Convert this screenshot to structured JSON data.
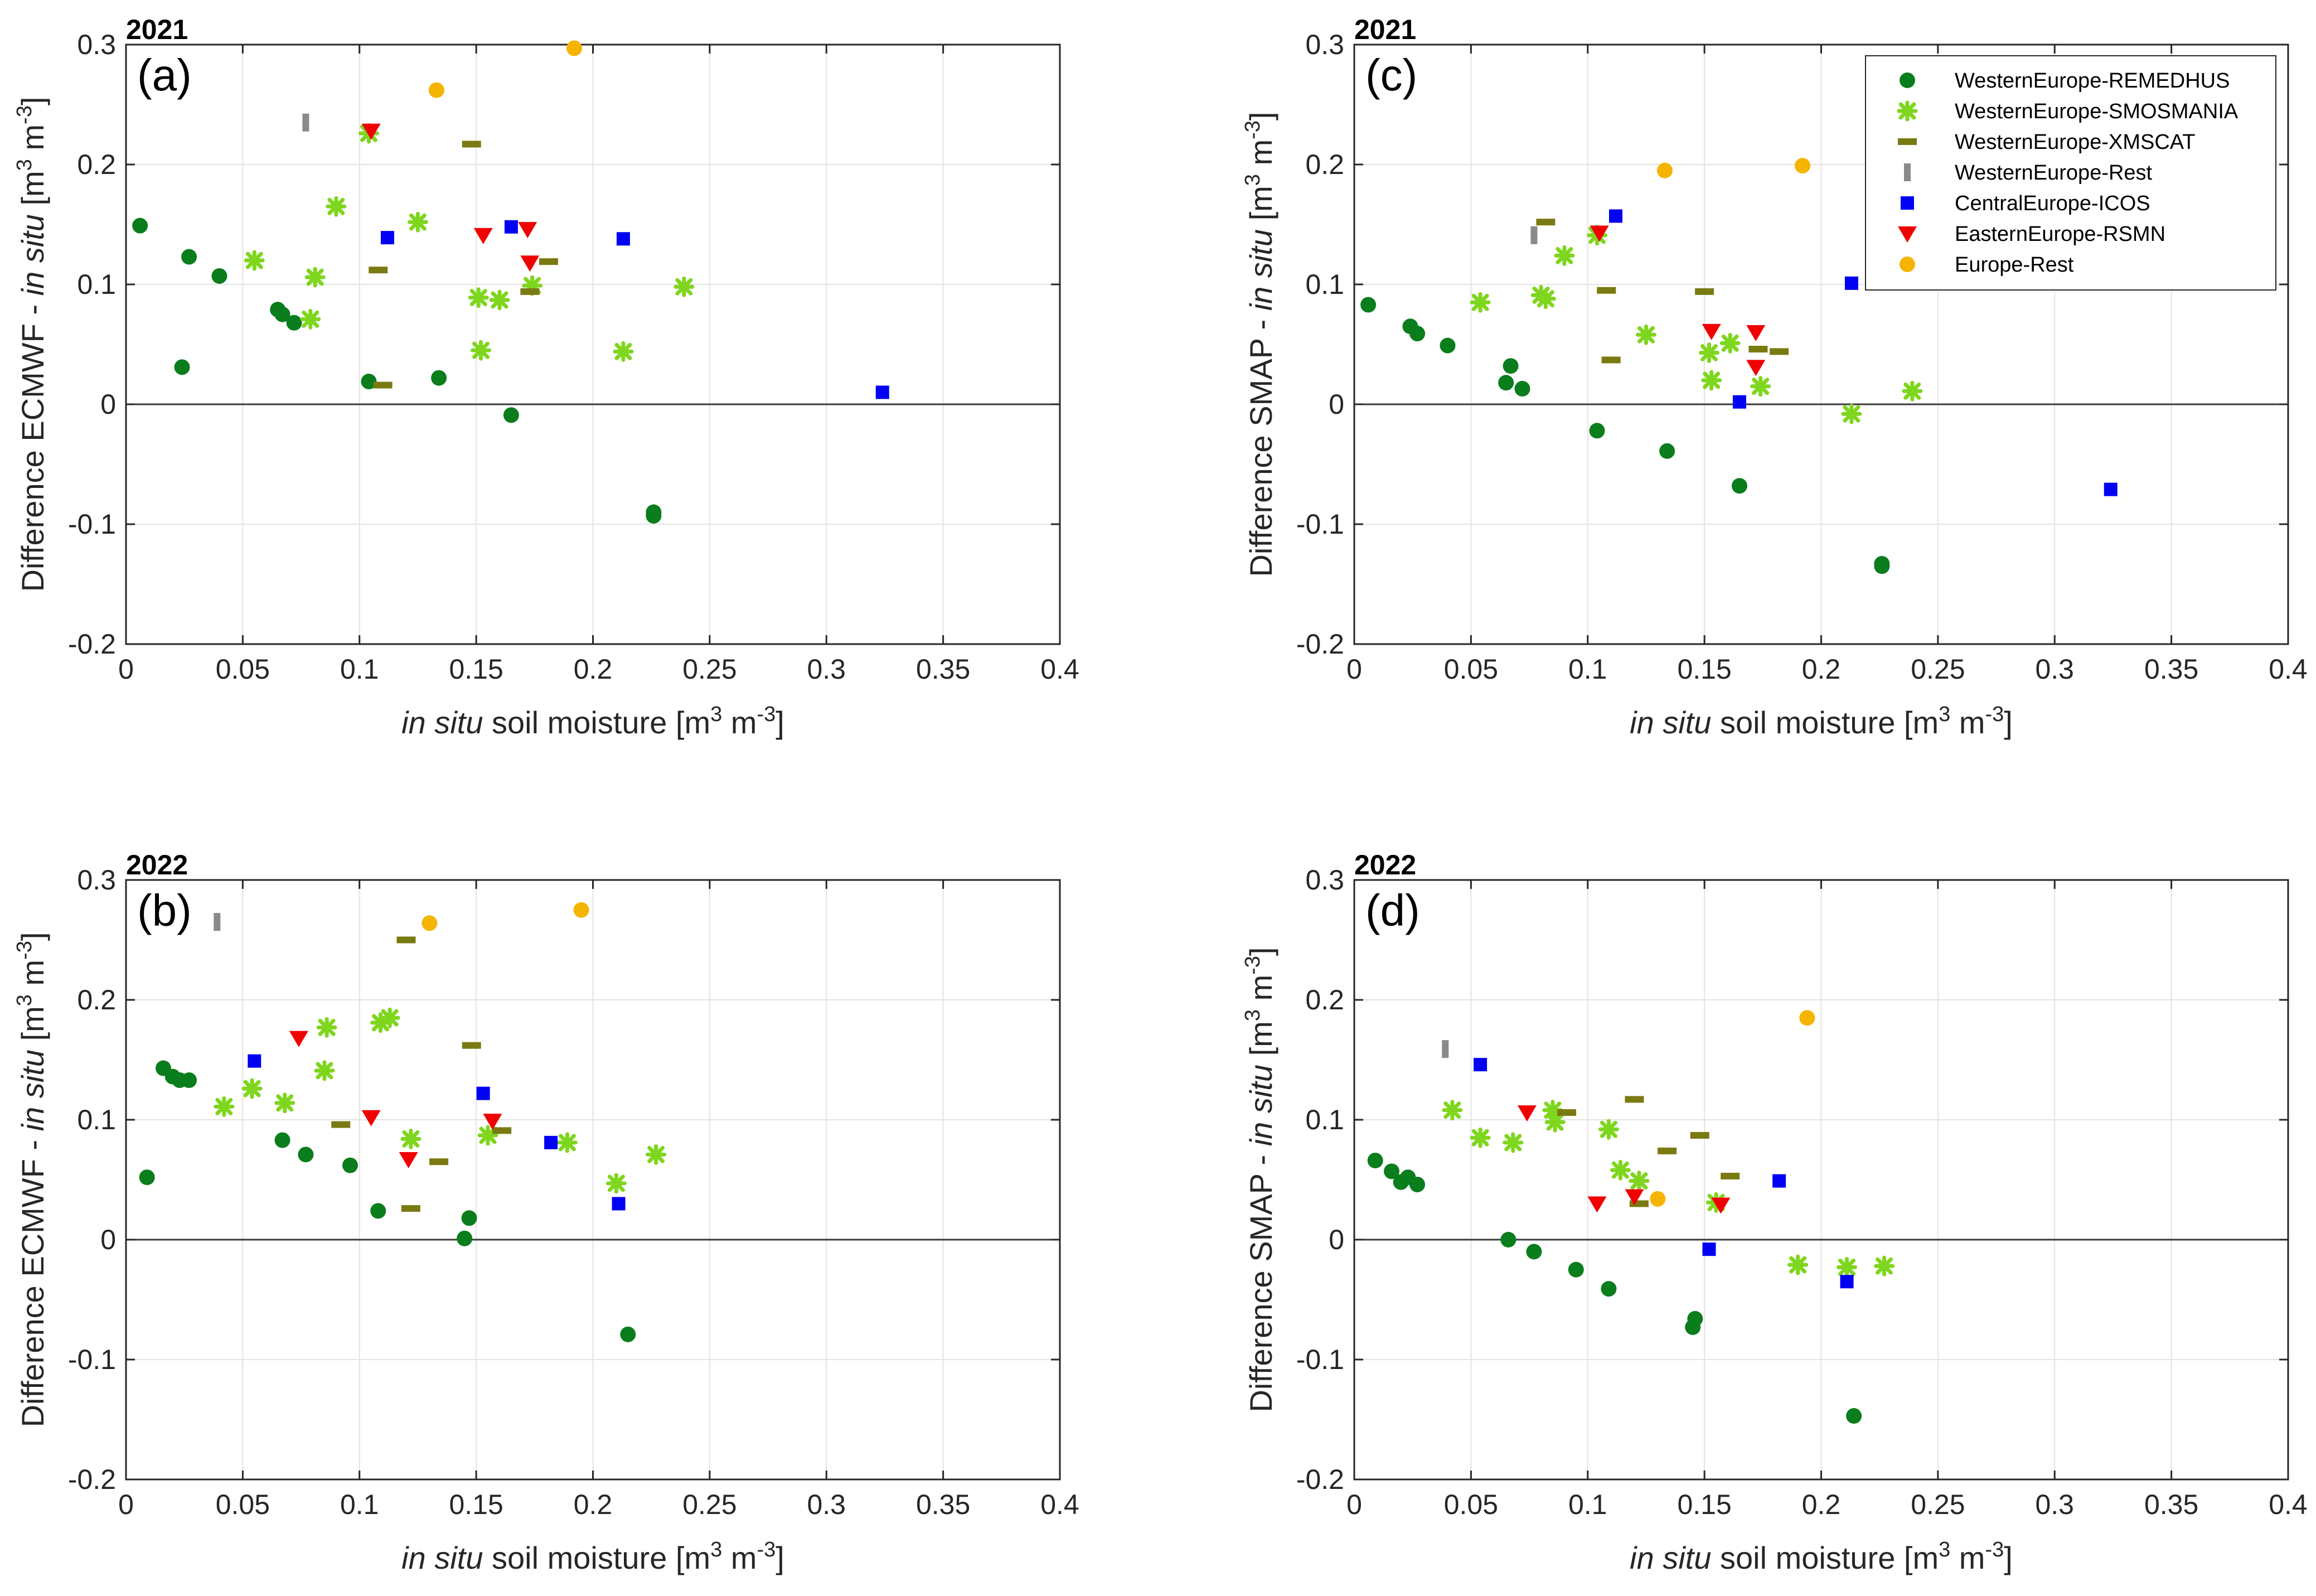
{
  "colors": {
    "WesternEurope-REMEDHUS": "#0a7d1c",
    "WesternEurope-SMOSMANIA": "#7fd61e",
    "WesternEurope-XMSCAT": "#7a7a12",
    "WesternEurope-Rest": "#8a8a8a",
    "CentralEurope-ICOS": "#0000f2",
    "EasternEurope-RSMN": "#f00000",
    "Europe-Rest": "#f5b400",
    "axis": "#262626",
    "grid": "#e3e3e3",
    "zero_line": "#3a3a3a"
  },
  "legend": {
    "entries": [
      {
        "name": "WesternEurope-REMEDHUS",
        "marker": "circle"
      },
      {
        "name": "WesternEurope-SMOSMANIA",
        "marker": "cross"
      },
      {
        "name": "WesternEurope-XMSCAT",
        "marker": "hbar"
      },
      {
        "name": "WesternEurope-Rest",
        "marker": "vbar"
      },
      {
        "name": "CentralEurope-ICOS",
        "marker": "square"
      },
      {
        "name": "EasternEurope-RSMN",
        "marker": "triangle-down"
      },
      {
        "name": "Europe-Rest",
        "marker": "circle"
      }
    ]
  },
  "chart_data": [
    {
      "type": "scatter",
      "panel_label": "(a)",
      "year": "2021",
      "ylabel_prefix": "Difference ECMWF - ",
      "ylabel_italic": "in situ",
      "ylabel_unit": "[m",
      "xlabel_italic": "in situ",
      "xlabel_text": "soil moisture [m",
      "unit_exp1": "3",
      "unit_mid": " m",
      "unit_exp2": "-3",
      "unit_close": "]",
      "xlim": [
        0,
        0.4
      ],
      "ylim": [
        -0.2,
        0.3
      ],
      "xticks": [
        "0",
        "0.05",
        "0.1",
        "0.15",
        "0.2",
        "0.25",
        "0.3",
        "0.35",
        "0.4"
      ],
      "yticks": [
        "-0.2",
        "-0.1",
        "0",
        "0.1",
        "0.2",
        "0.3"
      ],
      "grid": true,
      "series": [
        {
          "name": "WesternEurope-REMEDHUS",
          "points": [
            [
              0.006,
              0.149
            ],
            [
              0.024,
              0.031
            ],
            [
              0.027,
              0.123
            ],
            [
              0.04,
              0.107
            ],
            [
              0.065,
              0.079
            ],
            [
              0.067,
              0.075
            ],
            [
              0.072,
              0.068
            ],
            [
              0.104,
              0.019
            ],
            [
              0.134,
              0.022
            ],
            [
              0.165,
              -0.009
            ],
            [
              0.226,
              -0.09
            ],
            [
              0.226,
              -0.093
            ]
          ]
        },
        {
          "name": "WesternEurope-SMOSMANIA",
          "points": [
            [
              0.055,
              0.12
            ],
            [
              0.079,
              0.071
            ],
            [
              0.081,
              0.106
            ],
            [
              0.09,
              0.165
            ],
            [
              0.104,
              0.226
            ],
            [
              0.125,
              0.152
            ],
            [
              0.151,
              0.089
            ],
            [
              0.152,
              0.045
            ],
            [
              0.16,
              0.087
            ],
            [
              0.174,
              0.099
            ],
            [
              0.213,
              0.044
            ],
            [
              0.239,
              0.098
            ]
          ]
        },
        {
          "name": "WesternEurope-XMSCAT",
          "points": [
            [
              0.108,
              0.112
            ],
            [
              0.11,
              0.016
            ],
            [
              0.148,
              0.217
            ],
            [
              0.173,
              0.094
            ],
            [
              0.181,
              0.119
            ]
          ]
        },
        {
          "name": "WesternEurope-Rest",
          "points": [
            [
              0.077,
              0.235
            ]
          ]
        },
        {
          "name": "CentralEurope-ICOS",
          "points": [
            [
              0.112,
              0.139
            ],
            [
              0.165,
              0.148
            ],
            [
              0.213,
              0.138
            ],
            [
              0.324,
              0.01
            ]
          ]
        },
        {
          "name": "EasternEurope-RSMN",
          "points": [
            [
              0.105,
              0.228
            ],
            [
              0.153,
              0.141
            ],
            [
              0.172,
              0.146
            ],
            [
              0.173,
              0.118
            ]
          ]
        },
        {
          "name": "Europe-Rest",
          "points": [
            [
              0.133,
              0.262
            ],
            [
              0.192,
              0.297
            ]
          ]
        }
      ]
    },
    {
      "type": "scatter",
      "panel_label": "(b)",
      "year": "2022",
      "ylabel_prefix": "Difference ECMWF - ",
      "ylabel_italic": "in situ",
      "ylabel_unit": "[m",
      "xlabel_italic": "in situ",
      "xlabel_text": "soil moisture [m",
      "unit_exp1": "3",
      "unit_mid": " m",
      "unit_exp2": "-3",
      "unit_close": "]",
      "xlim": [
        0,
        0.4
      ],
      "ylim": [
        -0.2,
        0.3
      ],
      "xticks": [
        "0",
        "0.05",
        "0.1",
        "0.15",
        "0.2",
        "0.25",
        "0.3",
        "0.35",
        "0.4"
      ],
      "yticks": [
        "-0.2",
        "-0.1",
        "0",
        "0.1",
        "0.2",
        "0.3"
      ],
      "grid": true,
      "series": [
        {
          "name": "WesternEurope-REMEDHUS",
          "points": [
            [
              0.009,
              0.052
            ],
            [
              0.016,
              0.143
            ],
            [
              0.02,
              0.136
            ],
            [
              0.023,
              0.133
            ],
            [
              0.027,
              0.133
            ],
            [
              0.067,
              0.083
            ],
            [
              0.077,
              0.071
            ],
            [
              0.096,
              0.062
            ],
            [
              0.108,
              0.024
            ],
            [
              0.145,
              0.001
            ],
            [
              0.147,
              0.018
            ],
            [
              0.215,
              -0.079
            ]
          ]
        },
        {
          "name": "WesternEurope-SMOSMANIA",
          "points": [
            [
              0.042,
              0.111
            ],
            [
              0.054,
              0.126
            ],
            [
              0.068,
              0.114
            ],
            [
              0.085,
              0.141
            ],
            [
              0.086,
              0.177
            ],
            [
              0.109,
              0.181
            ],
            [
              0.113,
              0.185
            ],
            [
              0.122,
              0.084
            ],
            [
              0.155,
              0.087
            ],
            [
              0.189,
              0.081
            ],
            [
              0.21,
              0.047
            ],
            [
              0.227,
              0.071
            ]
          ]
        },
        {
          "name": "WesternEurope-XMSCAT",
          "points": [
            [
              0.092,
              0.096
            ],
            [
              0.12,
              0.25
            ],
            [
              0.122,
              0.026
            ],
            [
              0.134,
              0.065
            ],
            [
              0.148,
              0.162
            ],
            [
              0.161,
              0.091
            ]
          ]
        },
        {
          "name": "WesternEurope-Rest",
          "points": [
            [
              0.039,
              0.265
            ]
          ]
        },
        {
          "name": "CentralEurope-ICOS",
          "points": [
            [
              0.055,
              0.149
            ],
            [
              0.153,
              0.122
            ],
            [
              0.182,
              0.081
            ],
            [
              0.211,
              0.03
            ]
          ]
        },
        {
          "name": "EasternEurope-RSMN",
          "points": [
            [
              0.074,
              0.168
            ],
            [
              0.105,
              0.102
            ],
            [
              0.121,
              0.067
            ],
            [
              0.157,
              0.099
            ]
          ]
        },
        {
          "name": "Europe-Rest",
          "points": [
            [
              0.13,
              0.264
            ],
            [
              0.195,
              0.275
            ]
          ]
        }
      ]
    },
    {
      "type": "scatter",
      "panel_label": "(c)",
      "year": "2021",
      "ylabel_prefix": "Difference SMAP - ",
      "ylabel_italic": "in situ",
      "ylabel_unit": "[m",
      "xlabel_italic": "in situ",
      "xlabel_text": "soil moisture [m",
      "unit_exp1": "3",
      "unit_mid": " m",
      "unit_exp2": "-3",
      "unit_close": "]",
      "xlim": [
        0,
        0.4
      ],
      "ylim": [
        -0.2,
        0.3
      ],
      "xticks": [
        "0",
        "0.05",
        "0.1",
        "0.15",
        "0.2",
        "0.25",
        "0.3",
        "0.35",
        "0.4"
      ],
      "yticks": [
        "-0.2",
        "-0.1",
        "0",
        "0.1",
        "0.2",
        "0.3"
      ],
      "grid": true,
      "legend_position": "top-right",
      "series": [
        {
          "name": "WesternEurope-REMEDHUS",
          "points": [
            [
              0.006,
              0.083
            ],
            [
              0.024,
              0.065
            ],
            [
              0.027,
              0.059
            ],
            [
              0.04,
              0.049
            ],
            [
              0.065,
              0.018
            ],
            [
              0.067,
              0.032
            ],
            [
              0.072,
              0.013
            ],
            [
              0.104,
              -0.022
            ],
            [
              0.134,
              -0.039
            ],
            [
              0.165,
              -0.068
            ],
            [
              0.226,
              -0.133
            ],
            [
              0.226,
              -0.135
            ]
          ]
        },
        {
          "name": "WesternEurope-SMOSMANIA",
          "points": [
            [
              0.054,
              0.085
            ],
            [
              0.08,
              0.091
            ],
            [
              0.082,
              0.088
            ],
            [
              0.09,
              0.124
            ],
            [
              0.104,
              0.141
            ],
            [
              0.125,
              0.058
            ],
            [
              0.152,
              0.043
            ],
            [
              0.153,
              0.02
            ],
            [
              0.161,
              0.051
            ],
            [
              0.174,
              0.015
            ],
            [
              0.213,
              -0.008
            ],
            [
              0.239,
              0.011
            ]
          ]
        },
        {
          "name": "WesternEurope-XMSCAT",
          "points": [
            [
              0.082,
              0.152
            ],
            [
              0.108,
              0.095
            ],
            [
              0.11,
              0.037
            ],
            [
              0.15,
              0.094
            ],
            [
              0.173,
              0.046
            ],
            [
              0.182,
              0.044
            ]
          ]
        },
        {
          "name": "WesternEurope-Rest",
          "points": [
            [
              0.077,
              0.141
            ]
          ]
        },
        {
          "name": "CentralEurope-ICOS",
          "points": [
            [
              0.112,
              0.157
            ],
            [
              0.165,
              0.002
            ],
            [
              0.213,
              0.101
            ],
            [
              0.324,
              -0.071
            ]
          ]
        },
        {
          "name": "EasternEurope-RSMN",
          "points": [
            [
              0.105,
              0.143
            ],
            [
              0.153,
              0.061
            ],
            [
              0.172,
              0.06
            ],
            [
              0.172,
              0.031
            ]
          ]
        },
        {
          "name": "Europe-Rest",
          "points": [
            [
              0.133,
              0.195
            ],
            [
              0.192,
              0.199
            ]
          ]
        }
      ]
    },
    {
      "type": "scatter",
      "panel_label": "(d)",
      "year": "2022",
      "ylabel_prefix": "Difference SMAP - ",
      "ylabel_italic": "in situ",
      "ylabel_unit": "[m",
      "xlabel_italic": "in situ",
      "xlabel_text": "soil moisture [m",
      "unit_exp1": "3",
      "unit_mid": " m",
      "unit_exp2": "-3",
      "unit_close": "]",
      "xlim": [
        0,
        0.4
      ],
      "ylim": [
        -0.2,
        0.3
      ],
      "xticks": [
        "0",
        "0.05",
        "0.1",
        "0.15",
        "0.2",
        "0.25",
        "0.3",
        "0.35",
        "0.4"
      ],
      "yticks": [
        "-0.2",
        "-0.1",
        "0",
        "0.1",
        "0.2",
        "0.3"
      ],
      "grid": true,
      "series": [
        {
          "name": "WesternEurope-REMEDHUS",
          "points": [
            [
              0.009,
              0.066
            ],
            [
              0.016,
              0.057
            ],
            [
              0.02,
              0.048
            ],
            [
              0.023,
              0.052
            ],
            [
              0.027,
              0.046
            ],
            [
              0.066,
              0.0
            ],
            [
              0.077,
              -0.01
            ],
            [
              0.095,
              -0.025
            ],
            [
              0.109,
              -0.041
            ],
            [
              0.145,
              -0.073
            ],
            [
              0.146,
              -0.066
            ],
            [
              0.214,
              -0.147
            ]
          ]
        },
        {
          "name": "WesternEurope-SMOSMANIA",
          "points": [
            [
              0.042,
              0.108
            ],
            [
              0.054,
              0.085
            ],
            [
              0.068,
              0.081
            ],
            [
              0.085,
              0.108
            ],
            [
              0.086,
              0.098
            ],
            [
              0.109,
              0.092
            ],
            [
              0.114,
              0.058
            ],
            [
              0.122,
              0.049
            ],
            [
              0.155,
              0.031
            ],
            [
              0.19,
              -0.021
            ],
            [
              0.211,
              -0.023
            ],
            [
              0.227,
              -0.022
            ]
          ]
        },
        {
          "name": "WesternEurope-XMSCAT",
          "points": [
            [
              0.091,
              0.106
            ],
            [
              0.12,
              0.117
            ],
            [
              0.122,
              0.03
            ],
            [
              0.134,
              0.074
            ],
            [
              0.148,
              0.087
            ],
            [
              0.161,
              0.053
            ]
          ]
        },
        {
          "name": "WesternEurope-Rest",
          "points": [
            [
              0.039,
              0.159
            ]
          ]
        },
        {
          "name": "CentralEurope-ICOS",
          "points": [
            [
              0.054,
              0.146
            ],
            [
              0.152,
              -0.008
            ],
            [
              0.182,
              0.049
            ],
            [
              0.211,
              -0.035
            ]
          ]
        },
        {
          "name": "EasternEurope-RSMN",
          "points": [
            [
              0.074,
              0.106
            ],
            [
              0.104,
              0.03
            ],
            [
              0.12,
              0.036
            ],
            [
              0.157,
              0.029
            ]
          ]
        },
        {
          "name": "Europe-Rest",
          "points": [
            [
              0.13,
              0.034
            ],
            [
              0.194,
              0.185
            ]
          ]
        }
      ]
    }
  ]
}
